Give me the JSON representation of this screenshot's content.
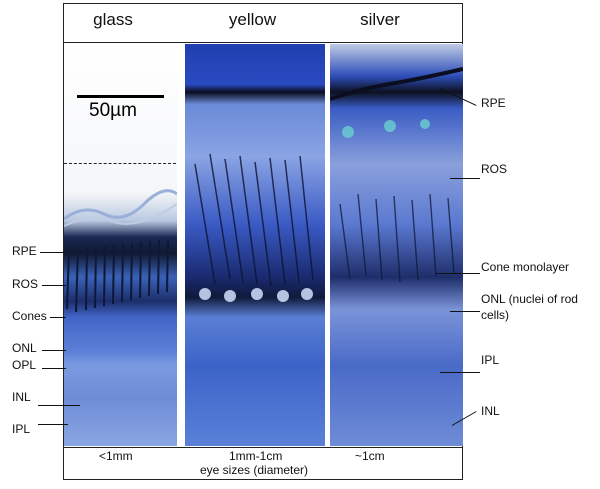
{
  "columns": {
    "glass": "glass",
    "yellow": "yellow",
    "silver": "silver"
  },
  "scale_bar": "50µm",
  "left_labels": {
    "rpe": "RPE",
    "ros": "ROS",
    "cones": "Cones",
    "onl": "ONL",
    "opl": "OPL",
    "inl": "INL",
    "ipl": "IPL"
  },
  "right_labels": {
    "rpe": "RPE",
    "ros": "ROS",
    "cone_monolayer": "Cone monolayer",
    "onl_line1": "ONL (nuclei of rod",
    "onl_line2": "cells)",
    "ipl": "IPL",
    "inl": "INL"
  },
  "bottom": {
    "glass_size": "<1mm",
    "yellow_size": "1mm-1cm",
    "silver_size": "~1cm",
    "caption": "eye sizes (diameter)"
  }
}
